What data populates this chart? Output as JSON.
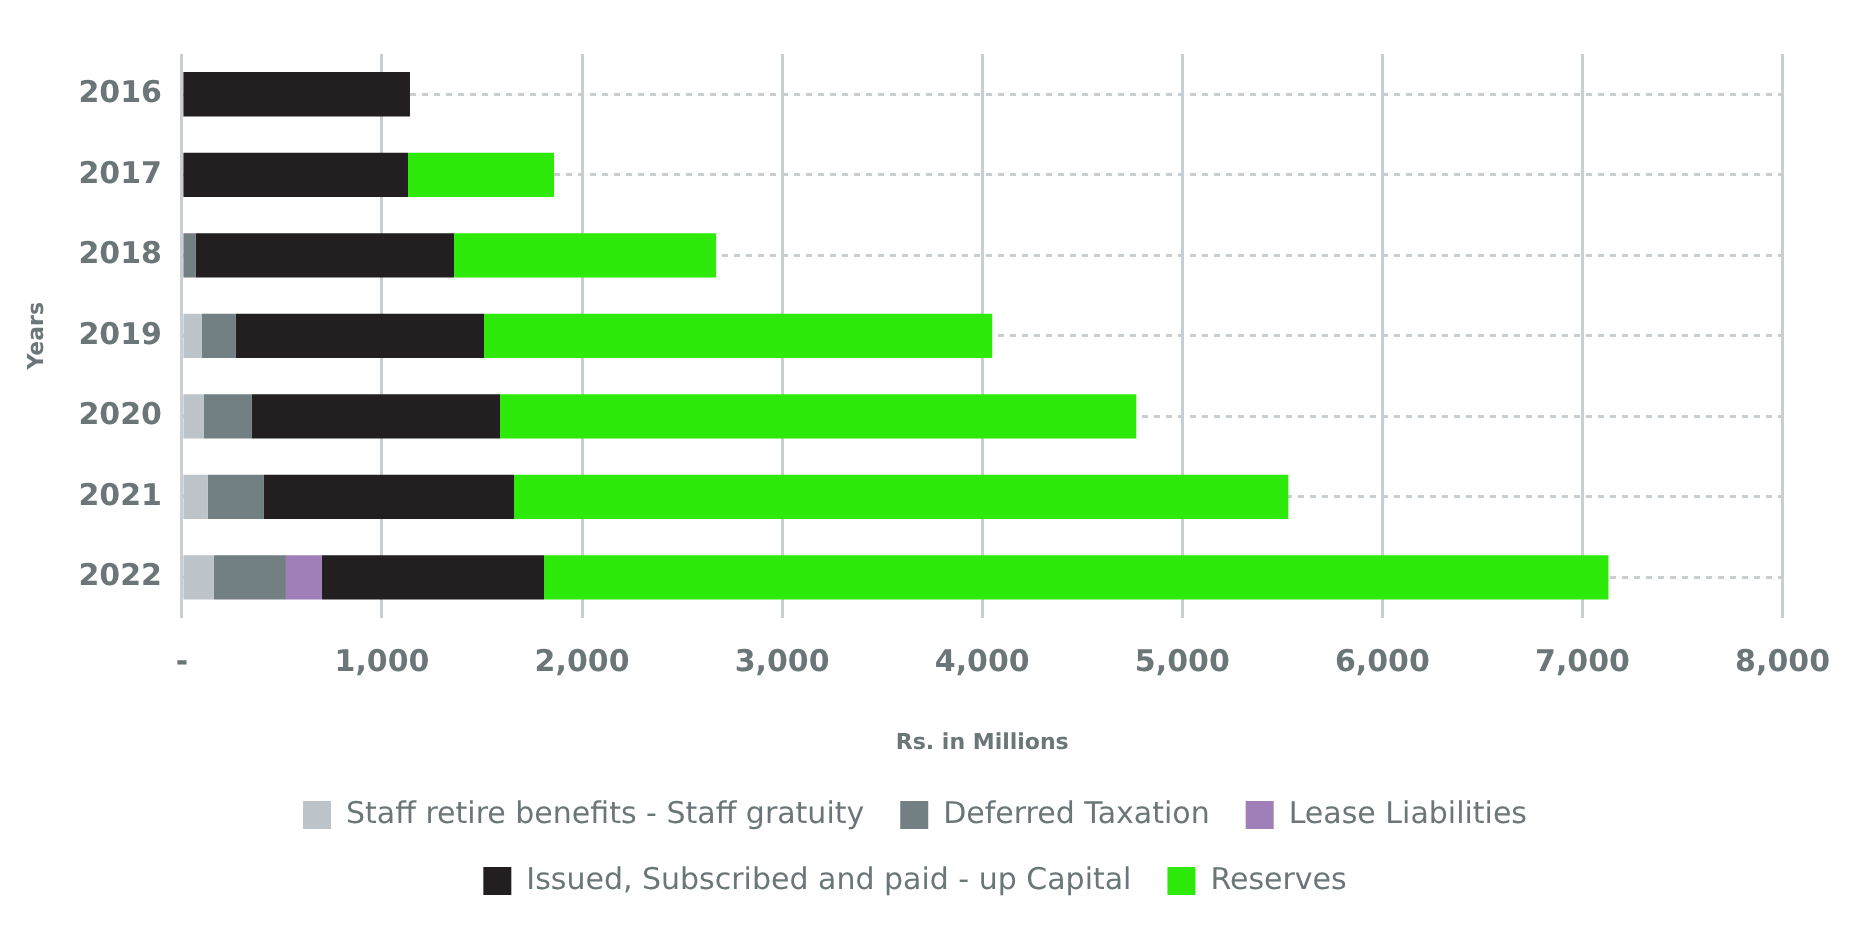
{
  "chart_data": {
    "type": "bar",
    "orientation": "horizontal",
    "stacked": true,
    "xlabel": "Rs. in Millions",
    "ylabel": "Years",
    "categories": [
      "2016",
      "2017",
      "2018",
      "2019",
      "2020",
      "2021",
      "2022"
    ],
    "series": [
      {
        "name": "Staff retire benefits - Staff gratuity",
        "color": "#bcc3c9",
        "values": [
          null,
          null,
          null,
          100,
          110,
          130,
          160
        ]
      },
      {
        "name": "Deferred Taxation",
        "color": "#727f83",
        "values": [
          null,
          null,
          70,
          170,
          240,
          280,
          360
        ]
      },
      {
        "name": "Lease Liabilities",
        "color": "#a07fb8",
        "values": [
          null,
          null,
          null,
          null,
          null,
          null,
          180
        ]
      },
      {
        "name": "Issued, Subscribed and paid - up Capital",
        "color": "#231f20",
        "values": [
          1140,
          1130,
          1290,
          1240,
          1240,
          1250,
          1110
        ]
      },
      {
        "name": "Reserves",
        "color": "#2eea0a",
        "values": [
          null,
          730,
          1310,
          2540,
          3180,
          3870,
          5320
        ]
      }
    ],
    "xlim": [
      0,
      8000
    ],
    "xticks": [
      {
        "value": 0,
        "label": "-"
      },
      {
        "value": 1000,
        "label": "1,000"
      },
      {
        "value": 2000,
        "label": "2,000"
      },
      {
        "value": 3000,
        "label": "3,000"
      },
      {
        "value": 4000,
        "label": "4,000"
      },
      {
        "value": 5000,
        "label": "5,000"
      },
      {
        "value": 6000,
        "label": "6,000"
      },
      {
        "value": 7000,
        "label": "7,000"
      },
      {
        "value": 8000,
        "label": "8,000"
      }
    ],
    "grid": true,
    "legend": "bottom"
  }
}
